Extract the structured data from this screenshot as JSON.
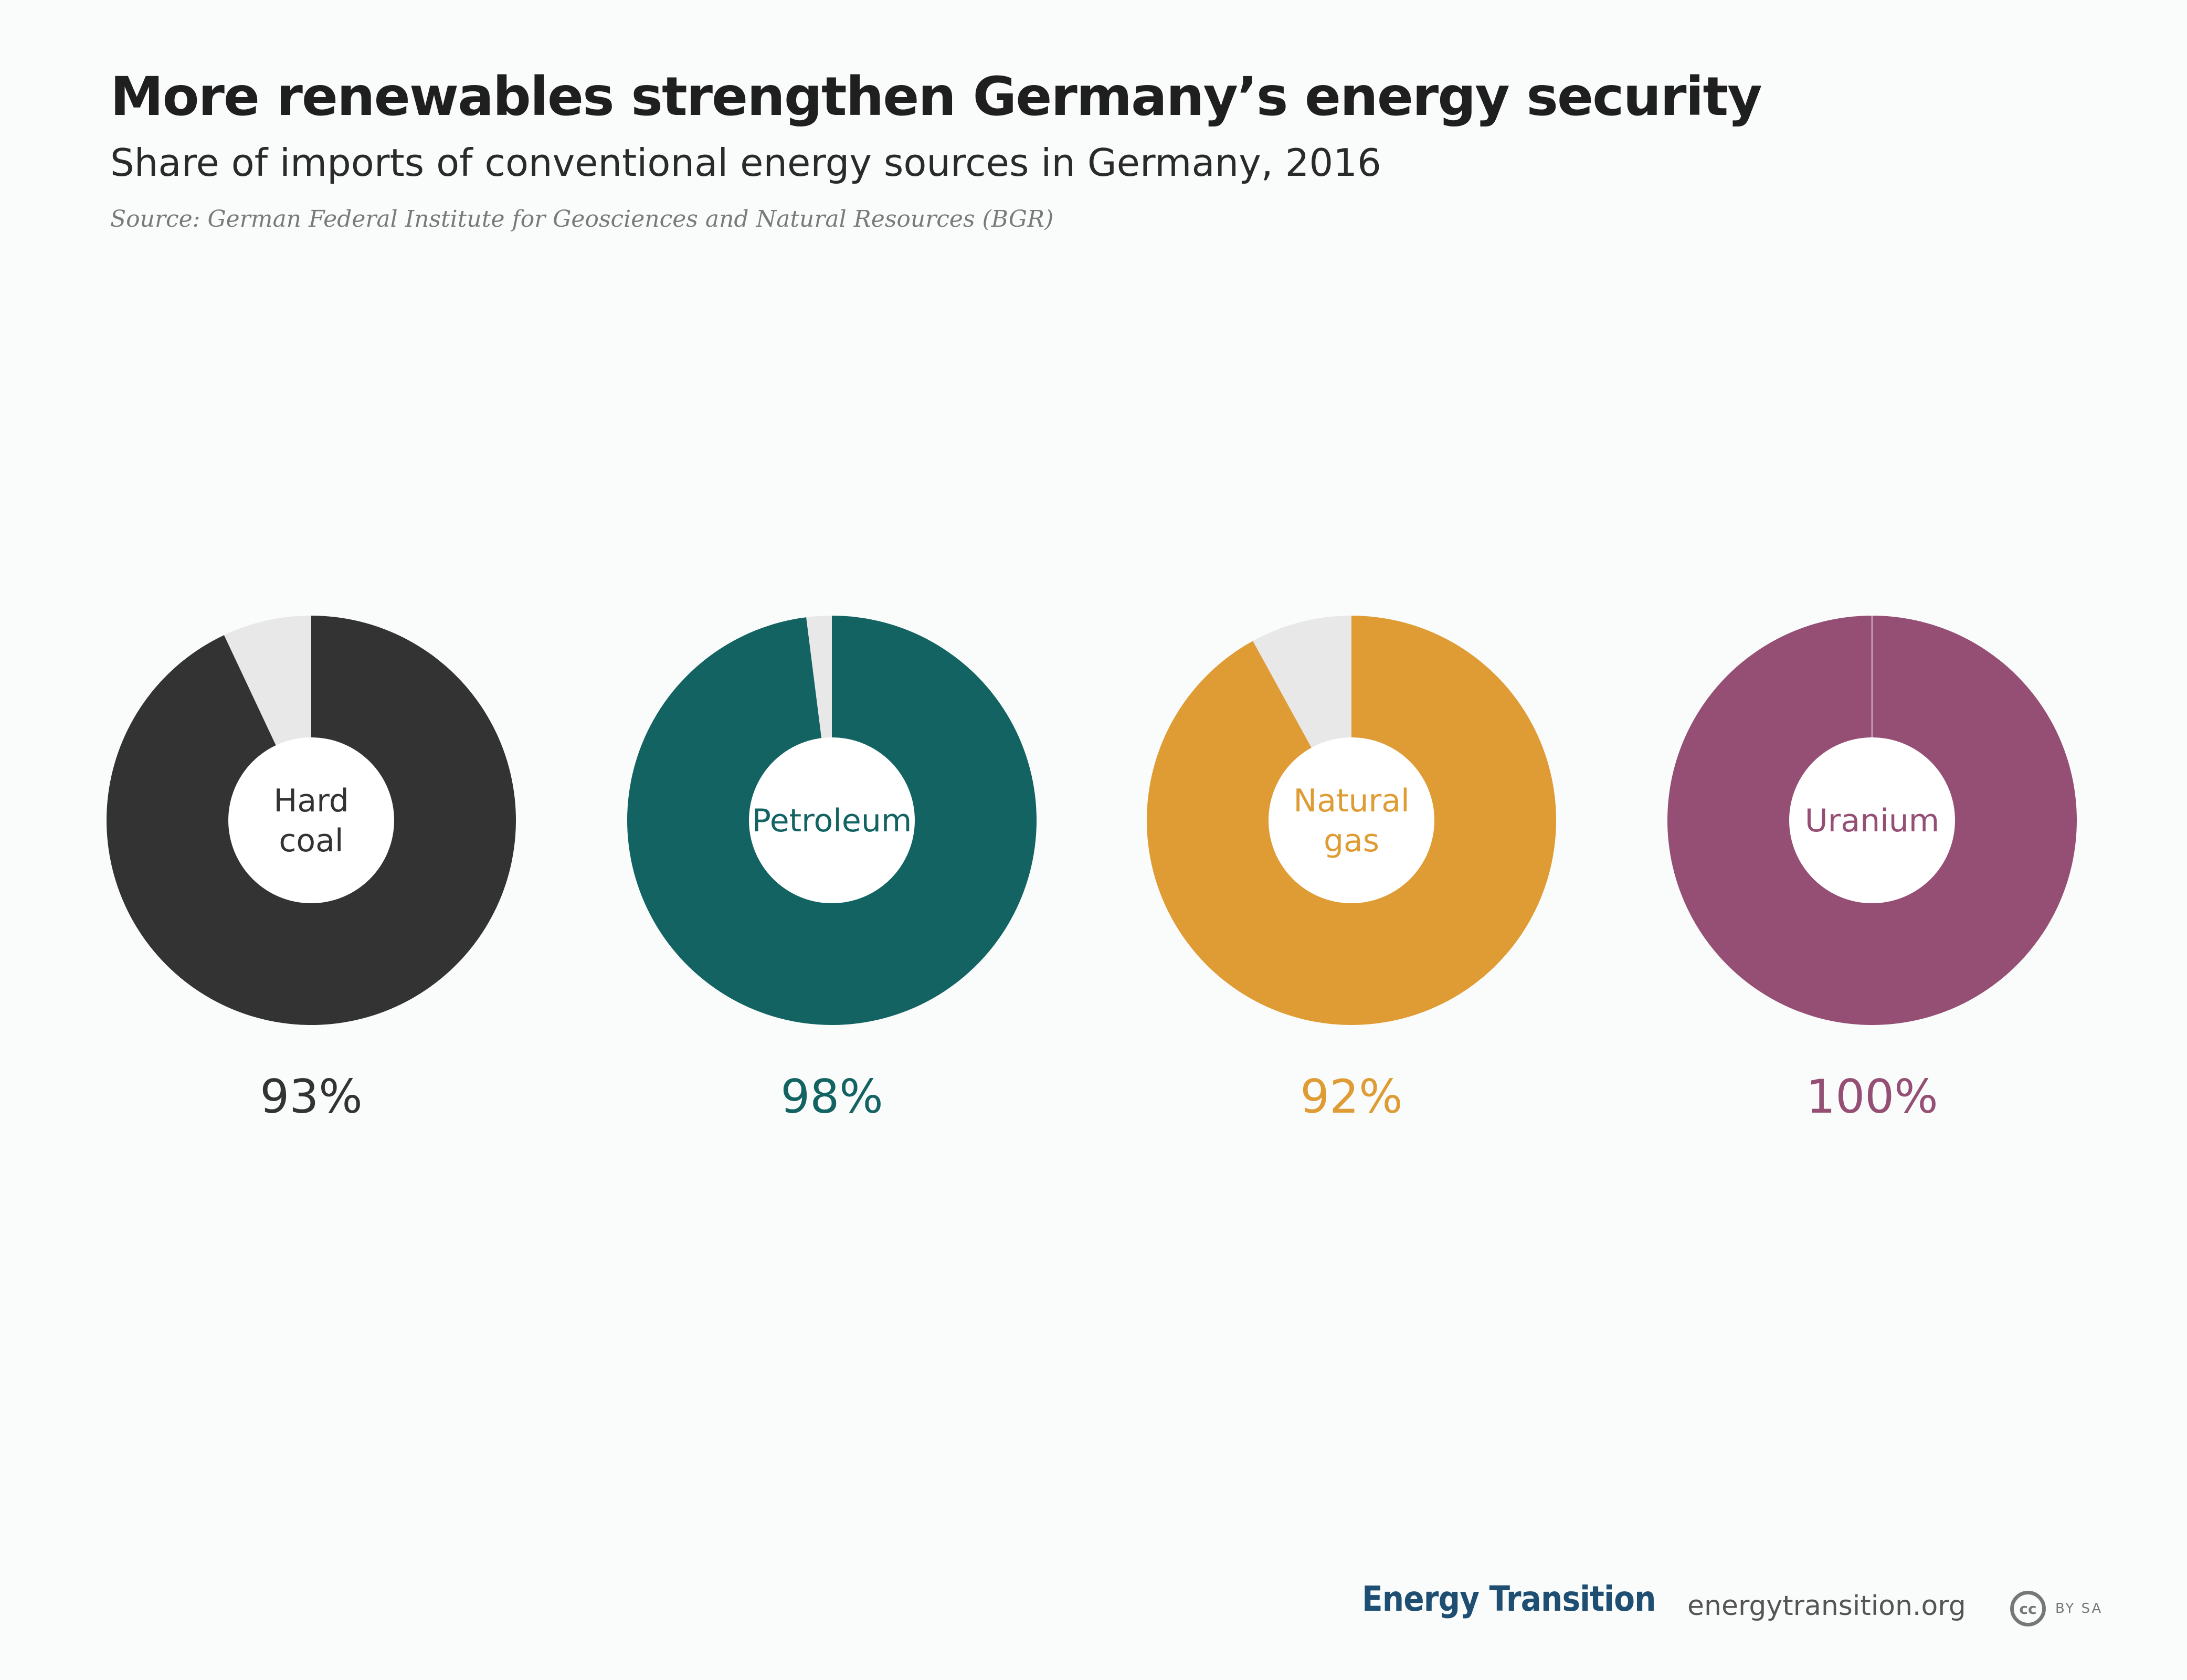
{
  "chart_data": {
    "type": "pie",
    "title": "More renewables strengthen Germany’s energy security",
    "subtitle": "Share of imports of conventional energy sources in Germany, 2016",
    "source": "Source: German Federal Institute for Geosciences and Natural Resources (BGR)",
    "series": [
      {
        "name": "Hard coal",
        "label_lines": [
          "Hard",
          "coal"
        ],
        "value": 93,
        "value_label": "93%",
        "color": "#333333"
      },
      {
        "name": "Petroleum",
        "label_lines": [
          "Petroleum"
        ],
        "value": 98,
        "value_label": "98%",
        "color": "#146363"
      },
      {
        "name": "Natural gas",
        "label_lines": [
          "Natural",
          "gas"
        ],
        "value": 92,
        "value_label": "92%",
        "color": "#df9c35"
      },
      {
        "name": "Uranium",
        "label_lines": [
          "Uranium"
        ],
        "value": 100,
        "value_label": "100%",
        "color": "#954f74"
      }
    ],
    "remainder_color": "#e8e8e8"
  },
  "footer": {
    "brand": "Energy Transition",
    "url": "energytransition.org",
    "cc": "cc",
    "license": "BY SA"
  }
}
